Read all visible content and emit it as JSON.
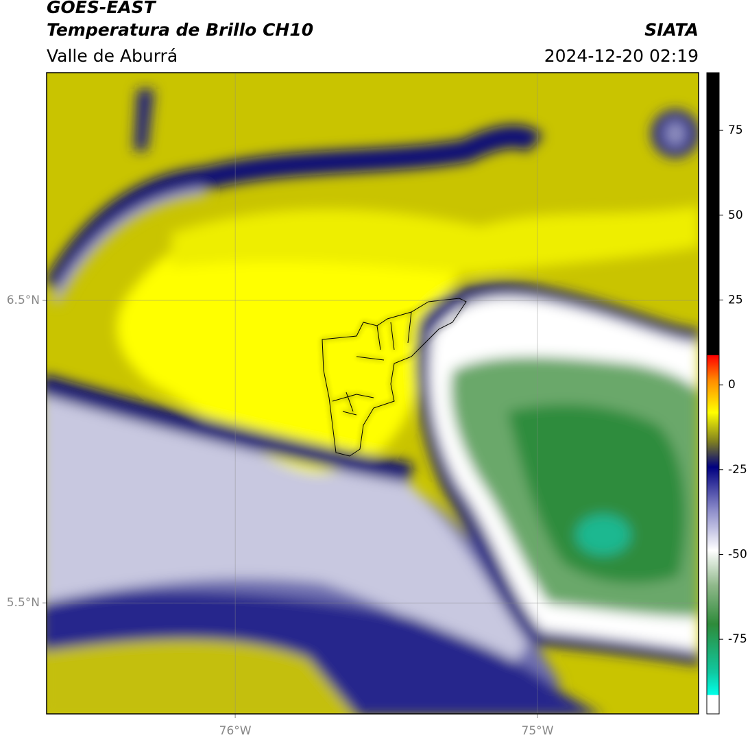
{
  "header": {
    "satellite": "GOES-EAST",
    "product": "Temperatura de Brillo CH10",
    "agency": "SIATA",
    "region": "Valle de Aburrá",
    "datetime": "2024-12-20 02:19"
  },
  "map": {
    "lon_lim": [
      -76.624,
      -74.467
    ],
    "lat_lim": [
      5.133,
      7.253
    ],
    "lon_ticks": [
      {
        "value": -76,
        "label": "76°W"
      },
      {
        "value": -75,
        "label": "75°W"
      }
    ],
    "lat_ticks": [
      {
        "value": 6.5,
        "label": "6.5°N"
      },
      {
        "value": 5.5,
        "label": "5.5°N"
      }
    ]
  },
  "colorbar": {
    "lim": [
      -97,
      92
    ],
    "ticks": [
      75,
      50,
      25,
      0,
      -25,
      -50,
      -75
    ]
  }
}
